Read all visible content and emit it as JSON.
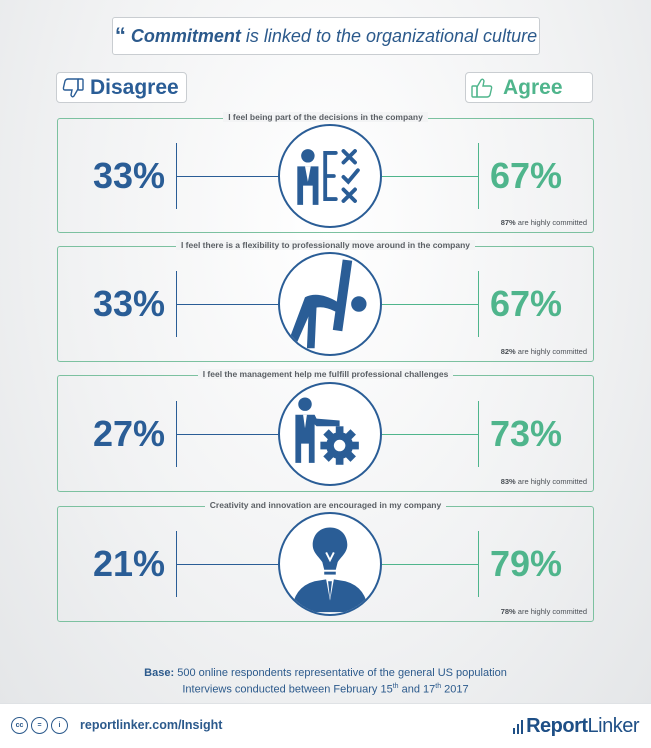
{
  "title": {
    "quote_glyph": "“",
    "bold": "Commitment",
    "rest": "is linked to the organizational culture"
  },
  "legend": {
    "disagree": "Disagree",
    "agree": "Agree"
  },
  "chart_data": {
    "type": "bar",
    "title": "Commitment is linked to the organizational culture",
    "series": [
      {
        "name": "Disagree",
        "color": "#2a5d96",
        "values": [
          33,
          33,
          27,
          21
        ]
      },
      {
        "name": "Agree",
        "color": "#4fb58c",
        "values": [
          67,
          67,
          73,
          79
        ]
      }
    ],
    "categories": [
      "I feel being part of the decisions in the company",
      "I feel there is a flexibility to professionally move around in the company",
      "I feel the management help me fulfill professional challenges",
      "Creativity and innovation are encouraged in my company"
    ],
    "highly_committed": [
      87,
      82,
      83,
      78
    ],
    "unit": "%"
  },
  "rows": [
    {
      "label": "I feel being part of the decisions in the company",
      "disagree": "33%",
      "agree": "67%",
      "committed_value": "87%",
      "committed_text": "are highly committed",
      "icon": "decision-icon"
    },
    {
      "label": "I feel there is a flexibility to professionally move around in the company",
      "disagree": "33%",
      "agree": "67%",
      "committed_value": "82%",
      "committed_text": "are highly committed",
      "icon": "stretch-icon"
    },
    {
      "label": "I feel the management help me fulfill professional challenges",
      "disagree": "27%",
      "agree": "73%",
      "committed_value": "83%",
      "committed_text": "are highly committed",
      "icon": "manager-gear-icon"
    },
    {
      "label": "Creativity and innovation are encouraged in my company",
      "disagree": "21%",
      "agree": "79%",
      "committed_value": "78%",
      "committed_text": "are highly committed",
      "icon": "lightbulb-person-icon"
    }
  ],
  "base": {
    "label": "Base:",
    "text": "500 online respondents representative of the general US population",
    "line2_a": "Interviews conducted between February 15",
    "sup1": "th",
    "line2_b": " and 17",
    "sup2": "th",
    "line2_c": " 2017"
  },
  "footer": {
    "cc": "cc",
    "nd": "=",
    "by": "i",
    "url": "reportlinker.com/Insight",
    "logo_a": "Report",
    "logo_b": "Linker"
  },
  "colors": {
    "disagree": "#2a5d96",
    "agree": "#4fb58c",
    "panel_border": "#7cc1a0"
  }
}
